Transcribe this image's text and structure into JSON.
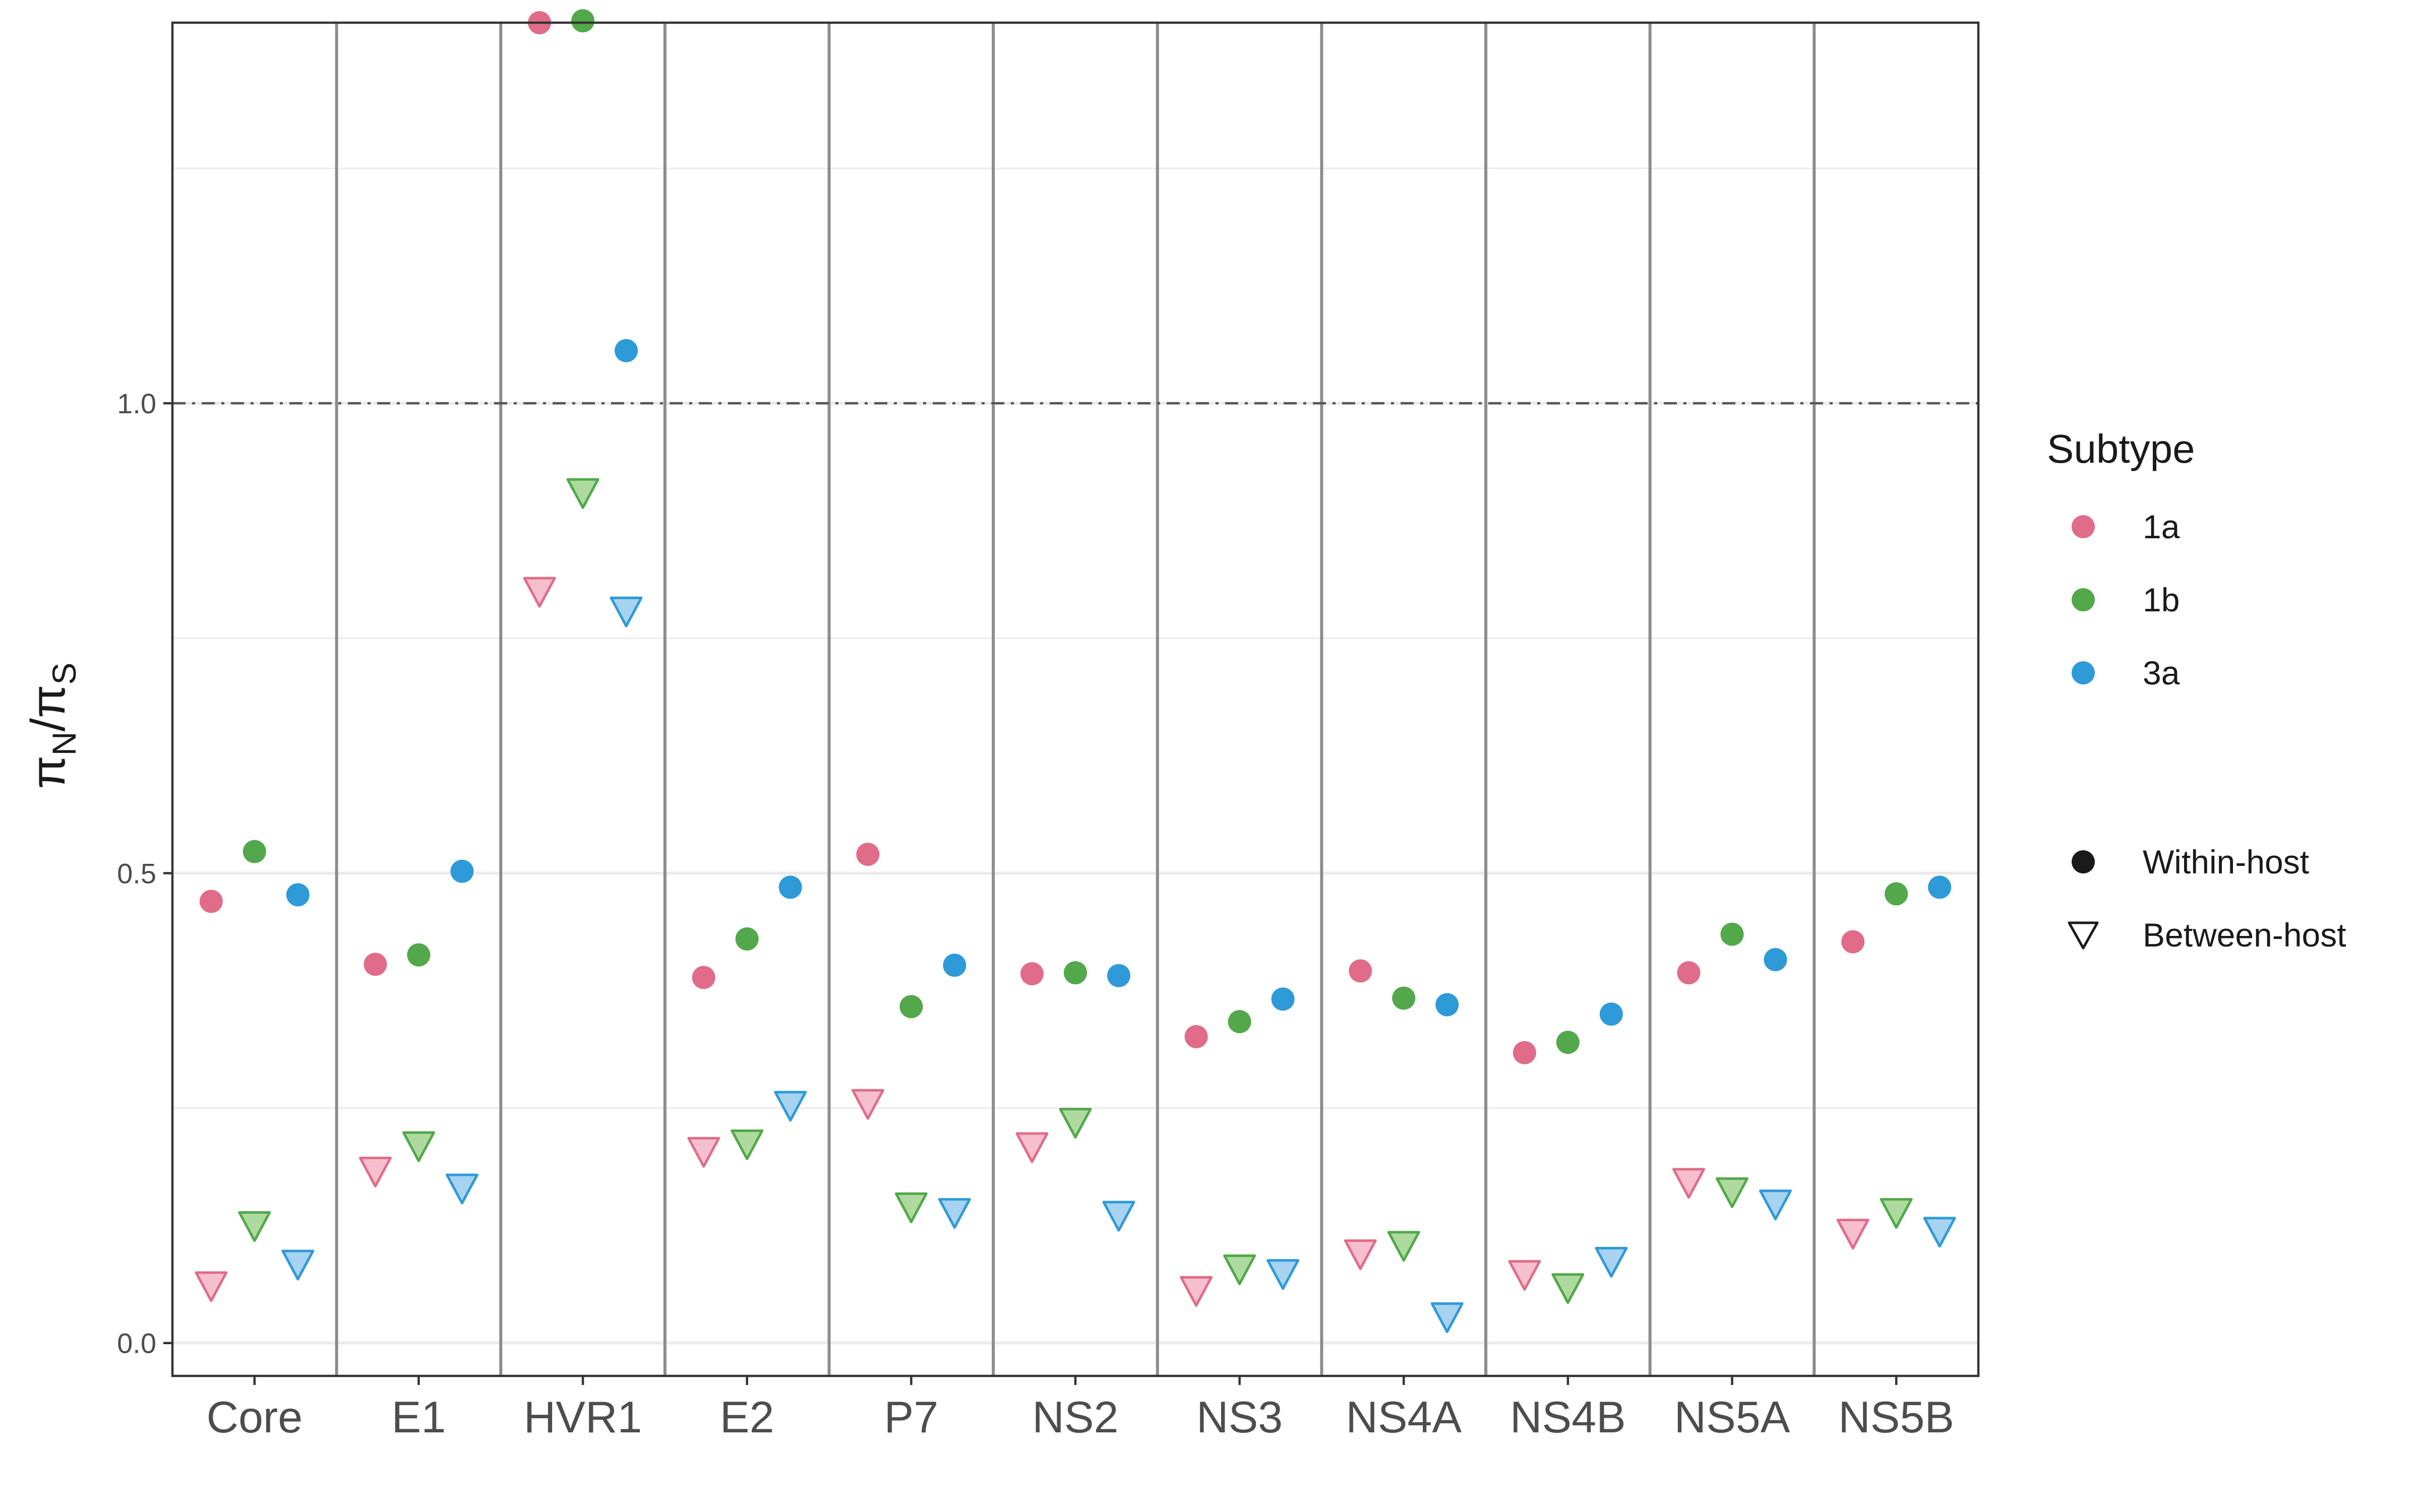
{
  "chart_data": {
    "type": "scatter",
    "ylabel_main": "π",
    "ylabel_sub1": "N",
    "ylabel_sep": "/π",
    "ylabel_sub2": "S",
    "ylim": [
      -0.035,
      1.405
    ],
    "yticks": [
      {
        "value": 0.0,
        "label": "0.0"
      },
      {
        "value": 0.5,
        "label": "0.5"
      },
      {
        "value": 1.0,
        "label": "1.0"
      }
    ],
    "reference_line": 1.0,
    "grid": true,
    "categories": [
      "Core",
      "E1",
      "HVR1",
      "E2",
      "P7",
      "NS2",
      "NS3",
      "NS4A",
      "NS4B",
      "NS5A",
      "NS5B"
    ],
    "series": [
      {
        "name": "1a",
        "kind": "Within-host",
        "color": "#E06C8A",
        "values": [
          0.47,
          0.403,
          1.405,
          0.389,
          0.52,
          0.393,
          0.326,
          0.396,
          0.309,
          0.394,
          0.427
        ]
      },
      {
        "name": "1b",
        "kind": "Within-host",
        "color": "#52A84A",
        "values": [
          0.523,
          0.413,
          1.407,
          0.43,
          0.358,
          0.394,
          0.342,
          0.367,
          0.32,
          0.435,
          0.478
        ]
      },
      {
        "name": "3a",
        "kind": "Within-host",
        "color": "#2E9AD8",
        "values": [
          0.477,
          0.502,
          1.056,
          0.485,
          0.402,
          0.391,
          0.366,
          0.36,
          0.35,
          0.408,
          0.485
        ]
      },
      {
        "name": "1a",
        "kind": "Between-host",
        "color": "#E06C8A",
        "fill": "#F6BFCD",
        "values": [
          0.061,
          0.183,
          0.8,
          0.204,
          0.255,
          0.209,
          0.056,
          0.095,
          0.073,
          0.171,
          0.117
        ]
      },
      {
        "name": "1b",
        "kind": "Between-host",
        "color": "#52A84A",
        "fill": "#AEDAA0",
        "values": [
          0.125,
          0.21,
          0.905,
          0.212,
          0.145,
          0.235,
          0.079,
          0.104,
          0.059,
          0.161,
          0.139
        ]
      },
      {
        "name": "3a",
        "kind": "Between-host",
        "color": "#2E9AD8",
        "fill": "#A7D3F0",
        "values": [
          0.084,
          0.165,
          0.779,
          0.253,
          0.139,
          0.136,
          0.074,
          0.028,
          0.087,
          0.148,
          0.119
        ]
      }
    ],
    "legend": {
      "position": "right",
      "title": "Subtype",
      "subtypes": [
        {
          "label": "1a",
          "color": "#E06C8A"
        },
        {
          "label": "1b",
          "color": "#52A84A"
        },
        {
          "label": "3a",
          "color": "#2E9AD8"
        }
      ],
      "shapes": [
        {
          "label": "Within-host",
          "shape": "circle"
        },
        {
          "label": "Between-host",
          "shape": "triangle-down"
        }
      ]
    }
  }
}
